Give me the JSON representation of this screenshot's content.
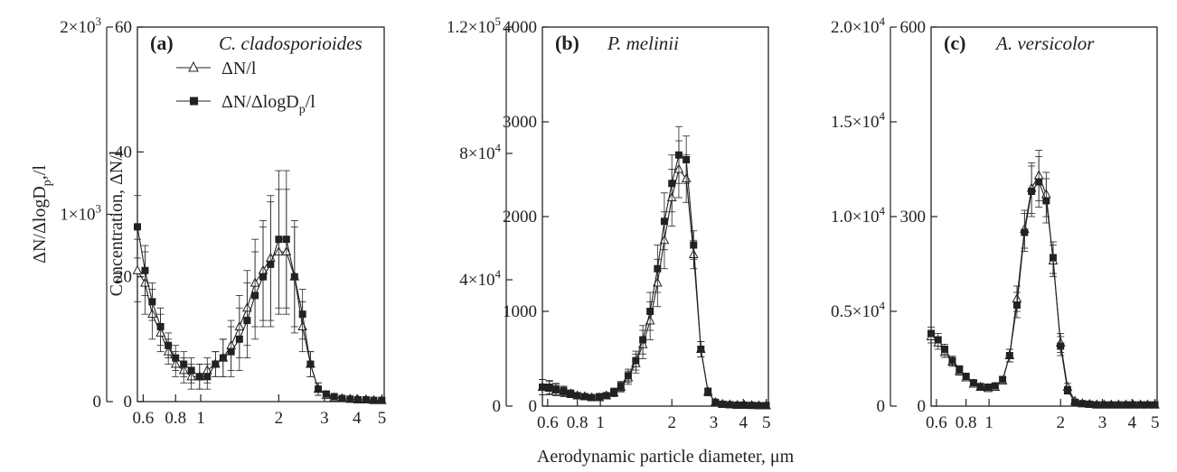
{
  "figure": {
    "xlabel": "Aerodynamic particle diameter, μm",
    "legend": {
      "n_label": "ΔN/l",
      "nlog_label": "ΔN/ΔlogD",
      "nlog_sub": "p",
      "nlog_suffix": "/l"
    }
  },
  "chart_data": [
    {
      "type": "line",
      "panel": "(a)",
      "species": "C. cladosporioides",
      "x_scale": "log",
      "xlim": [
        0.57,
        5.1
      ],
      "x_ticks": [
        "0.6",
        "0.8",
        "1",
        "2",
        "3",
        "4",
        "5"
      ],
      "left_axis": {
        "label_main": "ΔN/ΔlogD",
        "label_sub": "p",
        "label_suffix": ",/l",
        "ylim": [
          0,
          2000
        ],
        "ticks": [
          {
            "value": 0,
            "label": "0"
          },
          {
            "value": 1000,
            "label": "1×10",
            "exp": "3"
          },
          {
            "value": 2000,
            "label": "2×10",
            "exp": "3"
          }
        ]
      },
      "right_axis": {
        "label": "Concentration, ΔN/l",
        "ylim": [
          0,
          60
        ],
        "ticks": [
          {
            "value": 0,
            "label": "0"
          },
          {
            "value": 20,
            "label": "20"
          },
          {
            "value": 40,
            "label": "40"
          },
          {
            "value": 60,
            "label": "60"
          }
        ]
      },
      "x": [
        0.57,
        0.61,
        0.65,
        0.7,
        0.75,
        0.8,
        0.86,
        0.92,
        0.99,
        1.06,
        1.14,
        1.22,
        1.31,
        1.41,
        1.51,
        1.62,
        1.74,
        1.86,
        2.0,
        2.14,
        2.3,
        2.47,
        2.65,
        2.84,
        3.05,
        3.27,
        3.51,
        3.77,
        4.04,
        4.34,
        4.65,
        4.99
      ],
      "series": [
        {
          "name": "ΔN/l",
          "marker": "open-triangle",
          "values": [
            21,
            19,
            14,
            11,
            8,
            6,
            5,
            4,
            4,
            5,
            6,
            7,
            9,
            12,
            15,
            19,
            21,
            23,
            24,
            24,
            20,
            12,
            6,
            2,
            1,
            0.6,
            0.5,
            0.4,
            0.3,
            0.3,
            0.2,
            0.2
          ],
          "errors": [
            5,
            5,
            4,
            3,
            2,
            2,
            2,
            2,
            2,
            2,
            2,
            3,
            4,
            5,
            6,
            7,
            8,
            10,
            10,
            10,
            8,
            4,
            2,
            1,
            0.5,
            0.3,
            0.3,
            0.2,
            0.2,
            0.2,
            0.1,
            0.1
          ]
        },
        {
          "name": "ΔN/ΔlogDp/l",
          "marker": "filled-square",
          "values": [
            28,
            21,
            16,
            12,
            9,
            7,
            6,
            5,
            4,
            4,
            6,
            7,
            8,
            10,
            13,
            17,
            20,
            22,
            26,
            26,
            20,
            14,
            6,
            2,
            1.2,
            0.8,
            0.5,
            0.4,
            0.3,
            0.3,
            0.2,
            0.2
          ],
          "errors": [
            5,
            4,
            3,
            3,
            2,
            2,
            2,
            2,
            2,
            2,
            2,
            3,
            4,
            5,
            6,
            7,
            8,
            10,
            11,
            11,
            9,
            4,
            2,
            1,
            0.5,
            0.3,
            0.3,
            0.2,
            0.2,
            0.2,
            0.1,
            0.1
          ]
        }
      ]
    },
    {
      "type": "line",
      "panel": "(b)",
      "species": "P. melinii",
      "x_scale": "log",
      "xlim": [
        0.57,
        5.1
      ],
      "x_ticks": [
        "0.6",
        "0.8",
        "1",
        "2",
        "3",
        "4",
        "5"
      ],
      "left_axis": {
        "ylim": [
          0,
          120000
        ],
        "ticks": [
          {
            "value": 0,
            "label": "0"
          },
          {
            "value": 40000,
            "label": "4×10",
            "exp": "4"
          },
          {
            "value": 80000,
            "label": "8×10",
            "exp": "4"
          },
          {
            "value": 120000,
            "label": "1.2×10",
            "exp": "5"
          }
        ]
      },
      "right_axis": {
        "ylim": [
          0,
          4000
        ],
        "ticks": [
          {
            "value": 0,
            "label": "0"
          },
          {
            "value": 1000,
            "label": "1000"
          },
          {
            "value": 2000,
            "label": "2000"
          },
          {
            "value": 3000,
            "label": "3000"
          },
          {
            "value": 4000,
            "label": "4000"
          }
        ]
      },
      "x": [
        0.57,
        0.61,
        0.65,
        0.7,
        0.75,
        0.8,
        0.86,
        0.92,
        0.99,
        1.06,
        1.14,
        1.22,
        1.31,
        1.41,
        1.51,
        1.62,
        1.74,
        1.86,
        2.0,
        2.14,
        2.3,
        2.47,
        2.65,
        2.84,
        3.05,
        3.27,
        3.51,
        3.77,
        4.04,
        4.34,
        4.65,
        4.99
      ],
      "series": [
        {
          "name": "ΔN/l",
          "marker": "open-triangle",
          "values": [
            200,
            190,
            170,
            150,
            130,
            110,
            100,
            90,
            90,
            110,
            140,
            200,
            300,
            450,
            650,
            900,
            1300,
            1750,
            2200,
            2500,
            2400,
            1600,
            600,
            150,
            40,
            20,
            15,
            10,
            10,
            8,
            5,
            5
          ],
          "errors": [
            80,
            70,
            60,
            50,
            40,
            30,
            30,
            30,
            30,
            30,
            40,
            50,
            70,
            100,
            150,
            200,
            250,
            300,
            300,
            300,
            250,
            150,
            80,
            40,
            15,
            8,
            5,
            4,
            4,
            3,
            2,
            2
          ]
        },
        {
          "name": "ΔN/ΔlogDp/l",
          "marker": "filled-square",
          "values": [
            200,
            200,
            180,
            160,
            130,
            110,
            100,
            90,
            100,
            110,
            150,
            210,
            320,
            480,
            700,
            1000,
            1450,
            1950,
            2350,
            2650,
            2600,
            1700,
            600,
            150,
            40,
            20,
            15,
            10,
            10,
            8,
            5,
            5
          ],
          "errors": [
            80,
            70,
            60,
            50,
            40,
            30,
            30,
            30,
            30,
            30,
            40,
            50,
            70,
            100,
            150,
            200,
            250,
            300,
            300,
            300,
            250,
            150,
            80,
            40,
            15,
            8,
            5,
            4,
            4,
            3,
            2,
            2
          ]
        }
      ]
    },
    {
      "type": "line",
      "panel": "(c)",
      "species": "A. versicolor",
      "x_scale": "log",
      "xlim": [
        0.57,
        5.1
      ],
      "x_ticks": [
        "0.6",
        "0.8",
        "1",
        "2",
        "3",
        "4",
        "5"
      ],
      "left_axis": {
        "ylim": [
          0,
          20000
        ],
        "ticks": [
          {
            "value": 0,
            "label": "0"
          },
          {
            "value": 5000,
            "label": "0.5×10",
            "exp": "4"
          },
          {
            "value": 10000,
            "label": "1.0×10",
            "exp": "4"
          },
          {
            "value": 15000,
            "label": "1.5×10",
            "exp": "4"
          },
          {
            "value": 20000,
            "label": "2.0×10",
            "exp": "4"
          }
        ]
      },
      "right_axis": {
        "ylim": [
          0,
          600
        ],
        "ticks": [
          {
            "value": 0,
            "label": "0"
          },
          {
            "value": 300,
            "label": "300"
          },
          {
            "value": 600,
            "label": "600"
          }
        ]
      },
      "x": [
        0.57,
        0.61,
        0.65,
        0.7,
        0.75,
        0.8,
        0.86,
        0.92,
        0.99,
        1.06,
        1.14,
        1.22,
        1.31,
        1.41,
        1.51,
        1.62,
        1.74,
        1.86,
        2.0,
        2.14,
        2.3,
        2.47,
        2.65,
        2.84,
        3.05,
        3.27,
        3.51,
        3.77,
        4.04,
        4.34,
        4.65,
        4.99
      ],
      "series": [
        {
          "name": "ΔN/l",
          "marker": "open-triangle",
          "values": [
            110,
            100,
            85,
            70,
            55,
            45,
            35,
            30,
            28,
            30,
            40,
            80,
            170,
            280,
            345,
            365,
            335,
            230,
            100,
            30,
            8,
            4,
            3,
            2,
            2,
            2,
            2,
            2,
            2,
            2,
            2,
            2
          ],
          "errors": [
            10,
            10,
            8,
            7,
            6,
            5,
            4,
            4,
            4,
            4,
            5,
            10,
            20,
            30,
            40,
            40,
            35,
            25,
            15,
            6,
            3,
            2,
            1,
            1,
            1,
            1,
            1,
            1,
            1,
            1,
            1,
            1
          ]
        },
        {
          "name": "ΔN/ΔlogDp/l",
          "marker": "filled-square",
          "values": [
            115,
            105,
            90,
            72,
            58,
            47,
            37,
            31,
            30,
            32,
            42,
            80,
            160,
            275,
            340,
            355,
            325,
            235,
            95,
            25,
            6,
            4,
            3,
            2,
            2,
            2,
            2,
            2,
            2,
            2,
            2,
            2
          ],
          "errors": [
            10,
            10,
            8,
            7,
            6,
            5,
            4,
            4,
            4,
            4,
            5,
            10,
            20,
            30,
            40,
            40,
            35,
            25,
            15,
            6,
            3,
            2,
            1,
            1,
            1,
            1,
            1,
            1,
            1,
            1,
            1,
            1
          ]
        }
      ]
    }
  ]
}
